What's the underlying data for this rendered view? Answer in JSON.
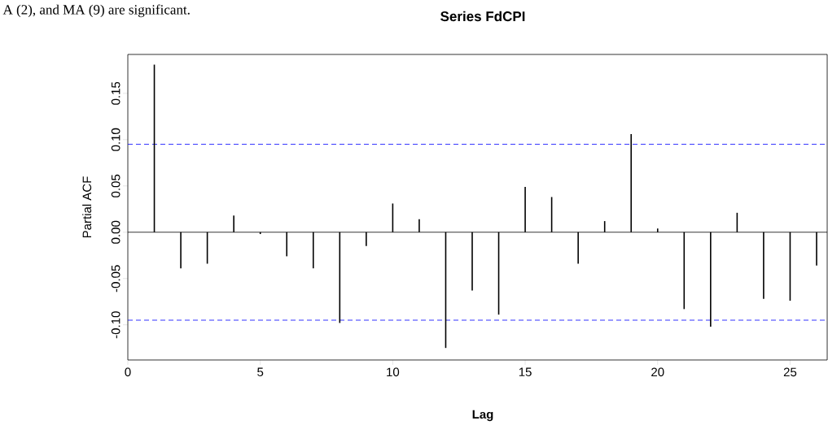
{
  "chart_data": {
    "type": "bar",
    "title": "Series  FdCPI",
    "xlabel": "Lag",
    "ylabel": "Partial ACF",
    "annotations": [
      "A (2), and MA (9) are significant."
    ],
    "x": [
      1,
      2,
      3,
      4,
      5,
      6,
      7,
      8,
      9,
      10,
      11,
      12,
      13,
      14,
      15,
      16,
      17,
      18,
      19,
      20,
      21,
      22,
      23,
      24,
      25,
      26
    ],
    "values": [
      0.181,
      -0.039,
      -0.034,
      0.018,
      -0.002,
      -0.026,
      -0.039,
      -0.098,
      -0.015,
      0.031,
      0.014,
      -0.125,
      -0.063,
      -0.089,
      0.049,
      0.038,
      -0.034,
      0.012,
      0.106,
      0.004,
      -0.083,
      -0.102,
      0.021,
      -0.072,
      -0.074,
      -0.036
    ],
    "color": "#000000",
    "xlim": [
      0,
      26.4
    ],
    "ylim": [
      -0.138,
      0.192
    ],
    "xticks": [
      0,
      5,
      10,
      15,
      20,
      25
    ],
    "yticks": [
      {
        "value": -0.1,
        "label": "-0.10"
      },
      {
        "value": -0.05,
        "label": "-0.05"
      },
      {
        "value": 0,
        "label": "0.00"
      },
      {
        "value": 0.05,
        "label": "0.05"
      },
      {
        "value": 0.1,
        "label": "0.10"
      },
      {
        "value": 0.15,
        "label": "0.15"
      }
    ],
    "ref_lines": [
      {
        "axis": "y",
        "value": 0,
        "color": "#000000",
        "line_style": "solid"
      },
      {
        "axis": "y",
        "value": 0.095,
        "color": "#0000ff",
        "line_style": "dashed"
      },
      {
        "axis": "y",
        "value": -0.095,
        "color": "#0000ff",
        "line_style": "dashed"
      }
    ],
    "marker": "none"
  }
}
